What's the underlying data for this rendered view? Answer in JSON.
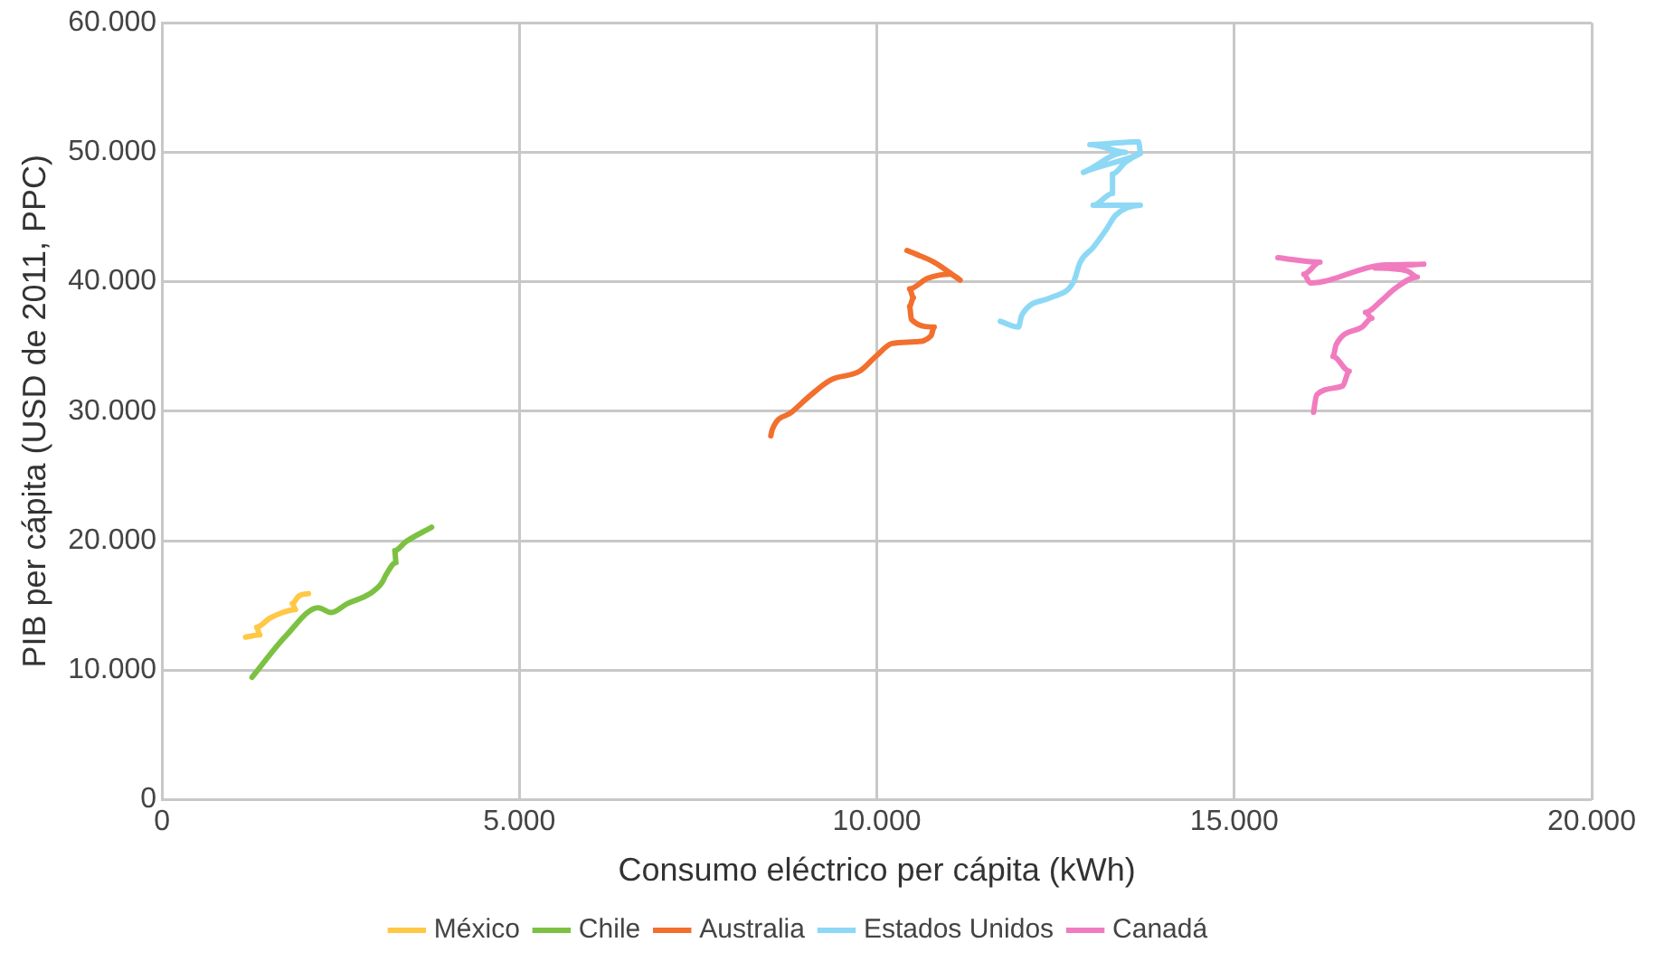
{
  "chart_data": {
    "type": "line",
    "xlabel": "Consumo eléctrico per cápita (kWh)",
    "ylabel": "PIB per cápita (USD de 2011, PPC)",
    "xlim": [
      0,
      20000
    ],
    "xticks": [
      {
        "value": 0,
        "label": "0"
      },
      {
        "value": 5000,
        "label": "5.000"
      },
      {
        "value": 10000,
        "label": "10.000"
      },
      {
        "value": 15000,
        "label": "15.000"
      },
      {
        "value": 20000,
        "label": "20.000"
      }
    ],
    "ylim": [
      0,
      60000
    ],
    "yticks": [
      {
        "value": 0,
        "label": "0"
      },
      {
        "value": 10000,
        "label": "10.000"
      },
      {
        "value": 20000,
        "label": "20.000"
      },
      {
        "value": 30000,
        "label": "30.000"
      },
      {
        "value": 40000,
        "label": "40.000"
      },
      {
        "value": 50000,
        "label": "50.000"
      },
      {
        "value": 60000,
        "label": "60.000"
      }
    ],
    "grid": true,
    "legend": "bottom",
    "marker": "none",
    "line_style": "solid",
    "series": [
      {
        "name": "México",
        "color": "#ffc845",
        "x": [
          1170,
          1370,
          1325,
          1506,
          1687,
          1868,
          1823,
          1914,
          2050
        ],
        "values": [
          12550,
          12720,
          13320,
          14000,
          14450,
          14680,
          15140,
          15730,
          15910
        ]
      },
      {
        "name": "Chile",
        "color": "#7cc142",
        "x": [
          1260,
          1733,
          2186,
          2367,
          2594,
          2912,
          3075,
          3139,
          3274,
          3257,
          3410,
          3773
        ],
        "values": [
          9450,
          12640,
          14820,
          14450,
          15140,
          15910,
          16730,
          17410,
          18310,
          19230,
          19910,
          21040
        ]
      },
      {
        "name": "Australia",
        "color": "#f26f2e",
        "x": [
          8517,
          8535,
          8807,
          9080,
          9352,
          9760,
          9986,
          10213,
          10531,
          10757,
          10803,
          10484,
          10458,
          10512,
          10458,
          10712,
          11029,
          11165,
          10803,
          10422
        ],
        "values": [
          28090,
          28540,
          29910,
          31270,
          32410,
          33090,
          34230,
          35230,
          35360,
          35820,
          36500,
          37090,
          38090,
          38770,
          39450,
          40270,
          40590,
          40130,
          41500,
          42410
        ]
      },
      {
        "name": "Estados Unidos",
        "color": "#8dd8f5",
        "x": [
          11728,
          11982,
          12027,
          12435,
          12753,
          12844,
          13025,
          13206,
          13342,
          13687,
          13025,
          13297,
          13297,
          13478,
          13687,
          12889,
          13478,
          12980,
          13660,
          13687
        ],
        "values": [
          36950,
          36500,
          37410,
          38770,
          40000,
          41500,
          42640,
          44000,
          45140,
          45910,
          45910,
          46820,
          48320,
          49230,
          49910,
          48450,
          50000,
          50590,
          50820,
          49910
        ]
      },
      {
        "name": "Canadá",
        "color": "#f07cbf",
        "x": [
          16109,
          16154,
          16517,
          16608,
          16381,
          16426,
          16789,
          16925,
          16835,
          17061,
          17243,
          17560,
          17424,
          16970,
          17651,
          17061,
          16063,
          15973,
          16199,
          15611
        ],
        "values": [
          29910,
          31270,
          31950,
          33090,
          34230,
          35140,
          36500,
          37180,
          37640,
          38550,
          39450,
          40360,
          40820,
          41050,
          41360,
          41280,
          39910,
          40590,
          41500,
          41860
        ]
      }
    ]
  }
}
